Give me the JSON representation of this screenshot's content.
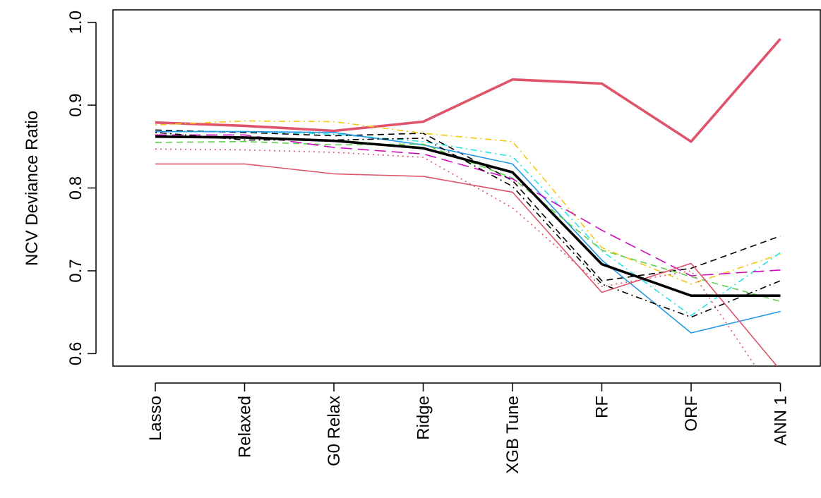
{
  "chart_data": {
    "type": "line",
    "title": "",
    "xlabel": "",
    "ylabel": "NCV Deviance Ratio",
    "categories": [
      "Lasso",
      "Relaxed",
      "G0 Relax",
      "Ridge",
      "XGB Tune",
      "RF",
      "ORF",
      "ANN 1"
    ],
    "ylim": [
      0.585,
      1.015
    ],
    "yticks": [
      "0.6",
      "0.7",
      "0.8",
      "0.9",
      "1.0"
    ],
    "grid": false,
    "legend": "none",
    "series": [
      {
        "color": "#DF536B",
        "style": "solid",
        "width": "thick",
        "values": [
          0.879,
          0.875,
          0.869,
          0.88,
          0.931,
          0.926,
          0.856,
          0.98
        ]
      },
      {
        "color": "#000000",
        "style": "dashed",
        "width": "thin",
        "values": [
          0.87,
          0.867,
          0.863,
          0.866,
          0.809,
          0.688,
          0.703,
          0.742
        ]
      },
      {
        "color": "#F5C710",
        "style": "dotdash",
        "width": "thin",
        "values": [
          0.876,
          0.881,
          0.88,
          0.866,
          0.856,
          0.728,
          0.684,
          0.72
        ]
      },
      {
        "color": "#28E2E5",
        "style": "dotdash",
        "width": "thin",
        "values": [
          0.868,
          0.868,
          0.865,
          0.856,
          0.838,
          0.724,
          0.646,
          0.722
        ]
      },
      {
        "color": "#2297E6",
        "style": "solid",
        "width": "thin",
        "values": [
          0.868,
          0.868,
          0.867,
          0.852,
          0.829,
          0.713,
          0.625,
          0.651
        ]
      },
      {
        "color": "#61D04F",
        "style": "dashed",
        "width": "thin",
        "values": [
          0.855,
          0.856,
          0.852,
          0.853,
          0.812,
          0.725,
          0.693,
          0.663
        ]
      },
      {
        "color": "#CD0BBC",
        "style": "longdash",
        "width": "thin",
        "values": [
          0.864,
          0.864,
          0.849,
          0.841,
          0.811,
          0.749,
          0.694,
          0.701
        ]
      },
      {
        "color": "#000000",
        "style": "dotdash",
        "width": "thin",
        "values": [
          0.867,
          0.858,
          0.858,
          0.86,
          0.802,
          0.684,
          0.644,
          0.688
        ]
      },
      {
        "color": "#DF536B",
        "style": "dotted",
        "width": "thin",
        "values": [
          0.847,
          0.846,
          0.843,
          0.837,
          0.776,
          0.681,
          0.7,
          0.54
        ]
      },
      {
        "color": "#DF536B",
        "style": "solid",
        "width": "thin",
        "values": [
          0.829,
          0.829,
          0.817,
          0.814,
          0.795,
          0.674,
          0.709,
          0.58
        ]
      },
      {
        "color": "#000000",
        "style": "solid",
        "width": "thick",
        "values": [
          0.862,
          0.861,
          0.857,
          0.848,
          0.819,
          0.708,
          0.67,
          0.67
        ]
      }
    ]
  }
}
